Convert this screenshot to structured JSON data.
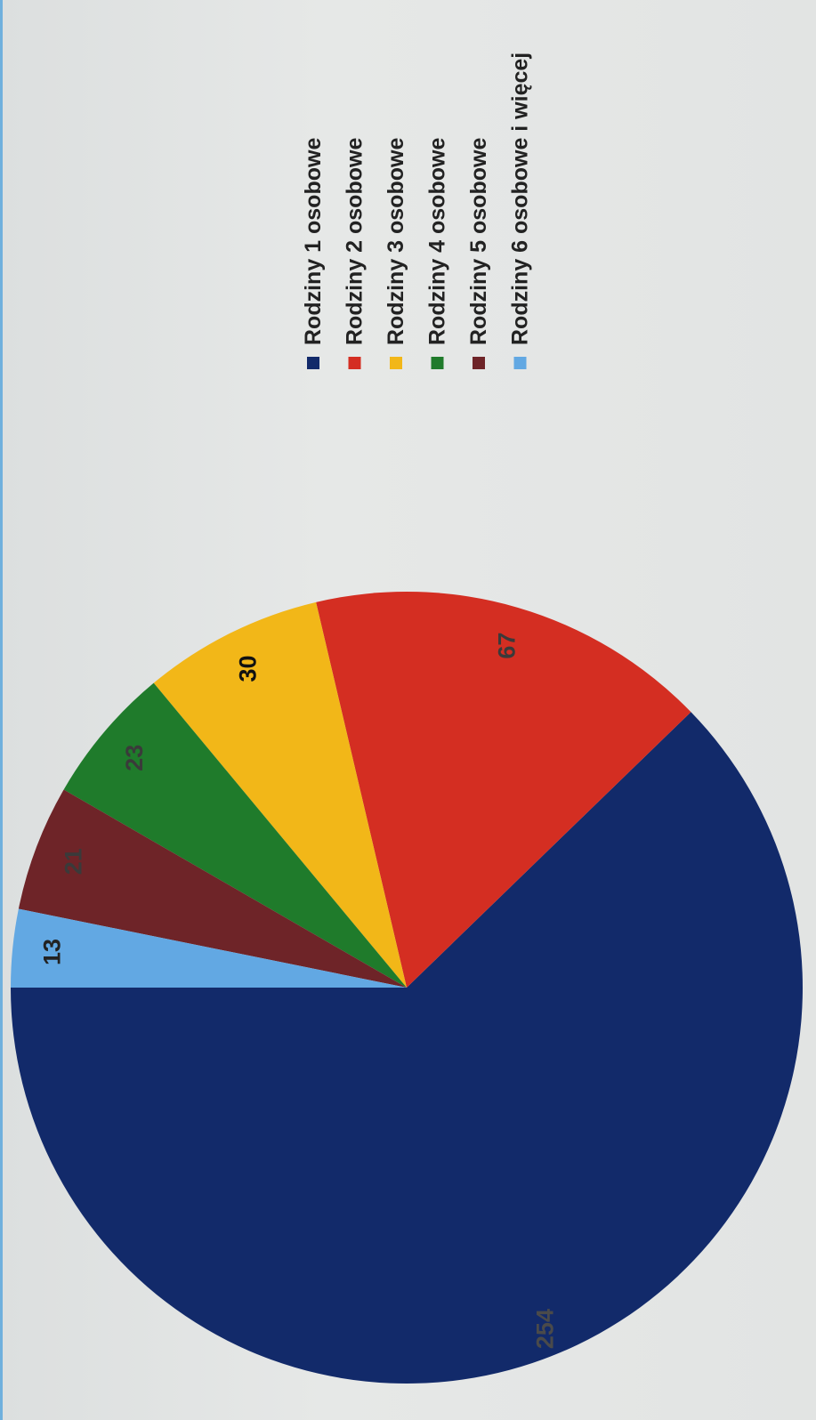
{
  "chart_data": {
    "type": "pie",
    "categories": [
      "Rodziny 1 osobowe",
      "Rodziny 2 osobowe",
      "Rodziny 3 osobowe",
      "Rodziny 4 osobowe",
      "Rodziny 5 osobowe",
      "Rodziny 6 osobowe i więcej"
    ],
    "values": [
      254,
      67,
      30,
      23,
      21,
      13
    ],
    "colors": [
      "#122a6a",
      "#d42e22",
      "#f2b718",
      "#1f7b2b",
      "#6e2428",
      "#62a8e3"
    ],
    "data_labels": [
      "254",
      "67",
      "30",
      "23",
      "21",
      "13"
    ],
    "label_colors": [
      "#4a4a4a",
      "#3a3a3a",
      "#111111",
      "#3a3a3a",
      "#3a3a3a",
      "#222222"
    ],
    "legend_position": "top-right"
  }
}
